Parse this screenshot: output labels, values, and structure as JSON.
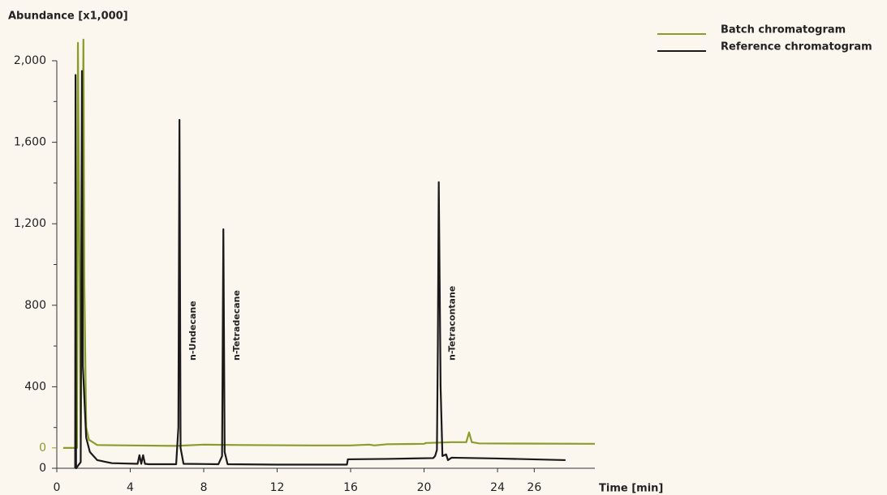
{
  "chart_data": {
    "type": "line",
    "title": "Abundance [x1,000]",
    "x_label": "Time [min]",
    "xlim": [
      0,
      29.3
    ],
    "xticks": [
      0,
      4,
      8,
      12,
      16,
      20,
      24,
      26
    ],
    "ylim": [
      0,
      2000
    ],
    "yticks": [
      0,
      400,
      800,
      {
        "value": 1200,
        "label": "1,200"
      },
      {
        "value": 1600,
        "label": "1,600"
      },
      {
        "value": 2000,
        "label": "2,000"
      }
    ],
    "yminor": [
      200,
      600,
      1000,
      1400,
      1800
    ],
    "y2lim": [
      -100,
      1900
    ],
    "y2ticks": [
      0
    ],
    "y2color": "#8a9c2c",
    "legend": "top-right",
    "series": [
      {
        "name": "Batch chromatogram",
        "color": "#8a9c2c",
        "axis": "y2",
        "x": [
          0.35,
          1.1,
          1.15,
          1.3,
          1.45,
          1.5,
          1.6,
          1.75,
          2.2,
          4,
          6.5,
          8,
          10,
          14,
          16,
          17,
          17.3,
          18,
          20,
          20.1,
          21.5,
          22.3,
          22.45,
          22.6,
          23,
          29.3
        ],
        "values": [
          0,
          0,
          1988,
          50,
          2004,
          800,
          100,
          40,
          14,
          12,
          10,
          16,
          14,
          12,
          12,
          16,
          12,
          18,
          20,
          24,
          28,
          28,
          76,
          28,
          22,
          20
        ]
      },
      {
        "name": "Reference chromatogram",
        "color": "#1a1a1a",
        "x": [
          1.0,
          1.02,
          1.05,
          1.3,
          1.37,
          1.42,
          1.6,
          1.8,
          2.2,
          3.0,
          4.4,
          4.5,
          4.6,
          4.7,
          4.8,
          5.0,
          6.5,
          6.62,
          6.68,
          6.74,
          6.9,
          8.8,
          9.0,
          9.07,
          9.14,
          9.3,
          12,
          15.8,
          15.85,
          18,
          20.5,
          20.6,
          20.7,
          20.75,
          20.8,
          20.9,
          21.0,
          21.2,
          21.3,
          21.5,
          24,
          27.7
        ],
        "values": [
          0,
          1930,
          0,
          30,
          1950,
          500,
          150,
          80,
          40,
          25,
          22,
          64,
          22,
          64,
          22,
          20,
          20,
          200,
          1710,
          100,
          22,
          20,
          60,
          1173,
          80,
          20,
          18,
          18,
          44,
          46,
          50,
          60,
          90,
          600,
          1404,
          400,
          60,
          68,
          40,
          52,
          48,
          40
        ]
      }
    ],
    "annotations": [
      {
        "text": "n-Undecane",
        "x": 6.68
      },
      {
        "text": "n-Tetradecane",
        "x": 9.07
      },
      {
        "text": "n-Tetracontane",
        "x": 20.8
      }
    ]
  }
}
